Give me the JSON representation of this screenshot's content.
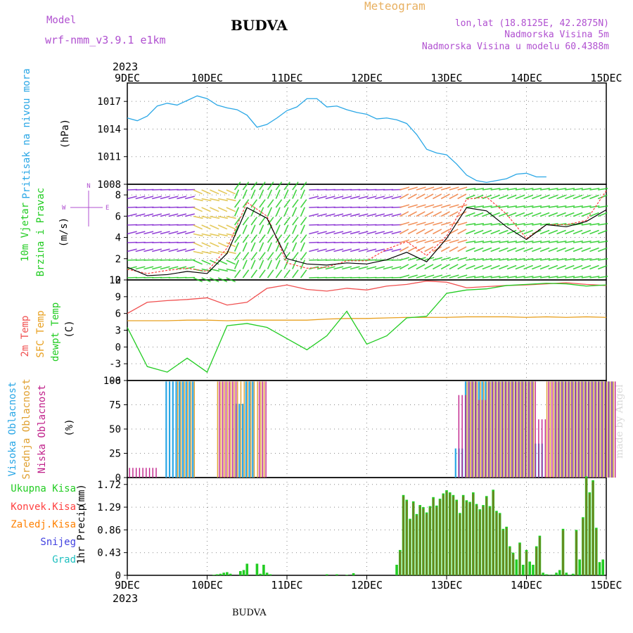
{
  "header": {
    "model_label": "Model",
    "model_name": "wrf-nmm_v3.9.1 e1km",
    "station": "BUDVA",
    "product": "Meteogram",
    "coords": "lon,lat (18.8125E, 42.2875N)",
    "elevation": "Nadmorska Visina 5m",
    "model_elevation": "Nadmorska Visina u modelu 60.4388m",
    "footer_station": "BUDVA",
    "credit": "made by Angel"
  },
  "colors": {
    "pressure": "#2aa7e6",
    "wind_speed": "#000000",
    "wind_gust": "#ff4040",
    "temp_2m": "#f05050",
    "temp_sfc": "#e8a020",
    "dewpoint": "#22cc22",
    "cloud_high": "#2aa7e6",
    "cloud_mid": "#e0a030",
    "cloud_low": "#c0208a",
    "precip_total": "#22cc22",
    "precip_conv": "#ff4040",
    "precip_frozen": "#ff8000",
    "snow": "#4040e0",
    "graupel": "#20c0c0",
    "model_label": "#b050d0",
    "product_label": "#e8b060"
  },
  "chart_data": [
    {
      "type": "line",
      "panel": "pressure",
      "ylabel": "Pritisak na nivou mora",
      "yunit": "(hPa)",
      "ylim": [
        1008,
        1019
      ],
      "yticks": [
        1008,
        1011,
        1014,
        1017
      ],
      "x_start": "2023-12-09 00:00",
      "x_end": "2023-12-15 00:00",
      "xtick_labels": [
        "9DEC",
        "10DEC",
        "11DEC",
        "12DEC",
        "13DEC",
        "14DEC",
        "15DEC"
      ],
      "x_year": "2023",
      "grid": true,
      "x_hours": [
        0,
        3,
        6,
        9,
        12,
        15,
        18,
        21,
        24,
        27,
        30,
        33,
        36,
        39,
        42,
        45,
        48,
        51,
        54,
        57,
        60,
        63,
        66,
        69,
        72,
        75,
        78,
        81,
        84,
        87,
        90,
        93,
        96,
        99,
        102,
        105,
        108,
        111,
        114,
        117,
        120,
        123,
        126,
        129,
        132,
        135,
        138,
        141,
        144
      ],
      "series": [
        {
          "values": [
            1015.2,
            1014.9,
            1015.4,
            1016.5,
            1016.8,
            1016.6,
            1017.1,
            1017.6,
            1017.3,
            1016.6,
            1016.3,
            1016.1,
            1015.5,
            1014.2,
            1014.5,
            1015.2,
            1016.0,
            1016.4,
            1017.3,
            1017.3,
            1016.4,
            1016.5,
            1016.1,
            1015.8,
            1015.6,
            1015.1,
            1015.2,
            1015.0,
            1014.6,
            1013.4,
            1011.8,
            1011.4,
            1011.2,
            1010.2,
            1009.0,
            1008.4,
            1008.2,
            1008.4,
            1008.6,
            1009.1,
            1009.2,
            1008.8,
            1008.8
          ],
          "x_start_index": 0
        }
      ]
    },
    {
      "type": "line",
      "panel": "wind",
      "ylabel": "10m Vjetar",
      "ylabel2": "Brzina i Pravac",
      "yunit": "(m/s)",
      "ylim": [
        0,
        9
      ],
      "yticks": [
        0,
        2,
        4,
        6,
        8
      ],
      "direction_key": "N",
      "direction_key_w": "W",
      "direction_key_e": "E",
      "x_hours": [
        0,
        6,
        12,
        18,
        24,
        30,
        36,
        42,
        48,
        54,
        60,
        66,
        72,
        78,
        84,
        90,
        96,
        102,
        108,
        114,
        120,
        126,
        132,
        138,
        144
      ],
      "series": [
        {
          "name": "speed",
          "values": [
            1.2,
            0.4,
            0.5,
            0.8,
            0.6,
            2.5,
            6.8,
            5.8,
            2.0,
            1.5,
            1.4,
            1.6,
            1.5,
            1.9,
            2.6,
            1.7,
            3.9,
            6.8,
            6.5,
            5.0,
            3.8,
            5.2,
            5.0,
            5.5,
            6.6
          ]
        },
        {
          "name": "gust",
          "values": [
            1.0,
            0.6,
            0.9,
            1.1,
            0.8,
            3.0,
            7.3,
            6.0,
            1.6,
            1.1,
            1.2,
            1.8,
            1.8,
            2.9,
            3.6,
            2.3,
            4.1,
            7.6,
            7.8,
            6.2,
            3.9,
            5.2,
            5.2,
            5.6,
            8.4
          ]
        }
      ]
    },
    {
      "type": "line",
      "panel": "temperature",
      "ylabel": "2m Temp",
      "ylabel2": "SFC Temp",
      "ylabel3": "dewpt Temp",
      "yunit": "(C)",
      "ylim": [
        -6,
        12
      ],
      "yticks": [
        -6,
        -3,
        0,
        3,
        6,
        9,
        12
      ],
      "x_hours": [
        0,
        6,
        12,
        18,
        24,
        30,
        36,
        42,
        48,
        54,
        60,
        66,
        72,
        78,
        84,
        90,
        96,
        102,
        108,
        114,
        120,
        126,
        132,
        138,
        144
      ],
      "series": [
        {
          "name": "2m Temp",
          "values": [
            6.0,
            8.0,
            8.3,
            8.5,
            8.8,
            7.5,
            8.0,
            10.5,
            11.1,
            10.3,
            10.0,
            10.5,
            10.2,
            10.9,
            11.2,
            11.8,
            11.6,
            10.6,
            10.8,
            11.0,
            11.1,
            11.3,
            11.5,
            11.2,
            11.0
          ]
        },
        {
          "name": "SFC Temp",
          "values": [
            4.7,
            4.7,
            4.7,
            4.8,
            4.8,
            4.7,
            4.8,
            4.8,
            4.8,
            4.8,
            5.0,
            5.1,
            5.1,
            5.2,
            5.3,
            5.3,
            5.3,
            5.4,
            5.4,
            5.4,
            5.3,
            5.4,
            5.3,
            5.4,
            5.3
          ]
        },
        {
          "name": "dewpt Temp",
          "values": [
            3.5,
            -3.5,
            -4.5,
            -2.0,
            -4.5,
            3.8,
            4.2,
            3.5,
            1.5,
            -0.5,
            2.0,
            6.4,
            0.5,
            2.0,
            5.2,
            5.5,
            9.6,
            10.2,
            10.4,
            11.0,
            11.2,
            11.4,
            11.3,
            10.9,
            11.1
          ]
        }
      ]
    },
    {
      "type": "bar",
      "panel": "clouds",
      "ylabel": "Visoka Oblacnost",
      "ylabel2": "Srednja Oblacnost",
      "ylabel3": "Niska Oblacnost",
      "yunit": "(%)",
      "ylim": [
        0,
        100
      ],
      "yticks": [
        0,
        25,
        50,
        75,
        100
      ],
      "x_hours": [
        0,
        3,
        6,
        9,
        12,
        15,
        18,
        21,
        24,
        27,
        30,
        33,
        36,
        39,
        42,
        45,
        48,
        51,
        54,
        57,
        60,
        63,
        66,
        69,
        72,
        75,
        78,
        81,
        84,
        87,
        90,
        93,
        96,
        99,
        102,
        105,
        108,
        111,
        114,
        117,
        120,
        123,
        126,
        129,
        132,
        135,
        138,
        141,
        144
      ],
      "series": [
        {
          "name": "Visoka Oblacnost",
          "values": [
            0,
            0,
            0,
            0,
            99,
            99,
            99,
            0,
            0,
            0,
            0,
            76,
            99,
            0,
            0,
            0,
            0,
            0,
            0,
            0,
            0,
            0,
            0,
            0,
            0,
            0,
            0,
            0,
            0,
            0,
            0,
            0,
            0,
            30,
            99,
            99,
            99,
            99,
            99,
            99,
            99,
            35,
            0,
            99,
            99,
            99,
            99,
            99,
            99
          ]
        },
        {
          "name": "Srednja Oblacnost",
          "values": [
            0,
            0,
            0,
            0,
            0,
            99,
            99,
            0,
            0,
            99,
            99,
            99,
            99,
            99,
            0,
            0,
            0,
            0,
            0,
            0,
            0,
            0,
            0,
            0,
            0,
            0,
            0,
            0,
            0,
            0,
            0,
            0,
            0,
            0,
            99,
            99,
            99,
            99,
            99,
            99,
            99,
            0,
            99,
            99,
            99,
            99,
            99,
            99,
            99
          ]
        },
        {
          "name": "Niska Oblacnost",
          "values": [
            10,
            10,
            10,
            0,
            0,
            0,
            0,
            0,
            0,
            99,
            99,
            0,
            0,
            99,
            0,
            0,
            0,
            0,
            0,
            0,
            0,
            0,
            0,
            0,
            0,
            0,
            0,
            0,
            0,
            0,
            0,
            0,
            0,
            85,
            99,
            80,
            99,
            99,
            99,
            99,
            99,
            60,
            99,
            99,
            99,
            99,
            99,
            99,
            99
          ]
        }
      ]
    },
    {
      "type": "bar",
      "panel": "precipitation",
      "ylabel": "1hr Precip",
      "yunit": "(mm)",
      "ylim": [
        0,
        1.85
      ],
      "yticks": [
        0,
        0.43,
        0.86,
        1.29,
        1.72
      ],
      "ytick_labels": [
        "0",
        "0.43",
        "0.86",
        "1.29",
        "1.72"
      ],
      "legend": [
        "Ukupna Kisa",
        "Konvek.Kisa",
        "Zaledj.Kisa",
        "Snijeg",
        "Grad"
      ],
      "xtick_labels": [
        "9DEC",
        "10DEC",
        "11DEC",
        "12DEC",
        "13DEC",
        "14DEC",
        "15DEC"
      ],
      "x_year": "2023",
      "bar_hours": [
        26,
        27,
        28,
        29,
        30,
        31,
        34,
        35,
        36,
        39,
        40,
        41,
        42,
        43,
        60,
        63,
        66,
        68,
        81,
        82,
        83,
        84,
        85,
        86,
        87,
        88,
        89,
        90,
        91,
        92,
        93,
        94,
        95,
        96,
        97,
        98,
        99,
        100,
        101,
        102,
        103,
        104,
        105,
        106,
        107,
        108,
        109,
        110,
        111,
        112,
        113,
        114,
        115,
        116,
        117,
        118,
        119,
        120,
        121,
        122,
        123,
        124,
        125,
        126,
        127,
        128,
        129,
        130,
        131,
        132,
        133,
        134,
        135,
        136,
        137,
        138,
        139,
        140,
        141,
        142,
        143
      ],
      "series": [
        {
          "name": "Ukupna Kisa",
          "values": [
            0.01,
            0.02,
            0.03,
            0.05,
            0.06,
            0.03,
            0.08,
            0.1,
            0.22,
            0.22,
            0.03,
            0.2,
            0.05,
            0.02,
            0.02,
            0.02,
            0.01,
            0.04,
            0.2,
            0.48,
            1.52,
            1.43,
            1.07,
            1.4,
            1.16,
            1.33,
            1.29,
            1.19,
            1.31,
            1.48,
            1.32,
            1.45,
            1.55,
            1.61,
            1.57,
            1.52,
            1.43,
            1.18,
            1.52,
            1.42,
            1.39,
            1.57,
            1.35,
            1.25,
            1.33,
            1.5,
            1.31,
            1.62,
            1.22,
            1.18,
            0.88,
            0.92,
            0.55,
            0.43,
            0.3,
            0.62,
            0.2,
            0.48,
            0.26,
            0.2,
            0.55,
            0.75,
            0.05,
            0.02,
            0.01,
            0.01,
            0.05,
            0.1,
            0.88,
            0.05,
            0.01,
            0.03,
            0.86,
            0.3,
            1.1,
            1.87,
            1.57,
            1.8,
            0.9,
            0.25,
            0.3
          ]
        }
      ]
    }
  ]
}
